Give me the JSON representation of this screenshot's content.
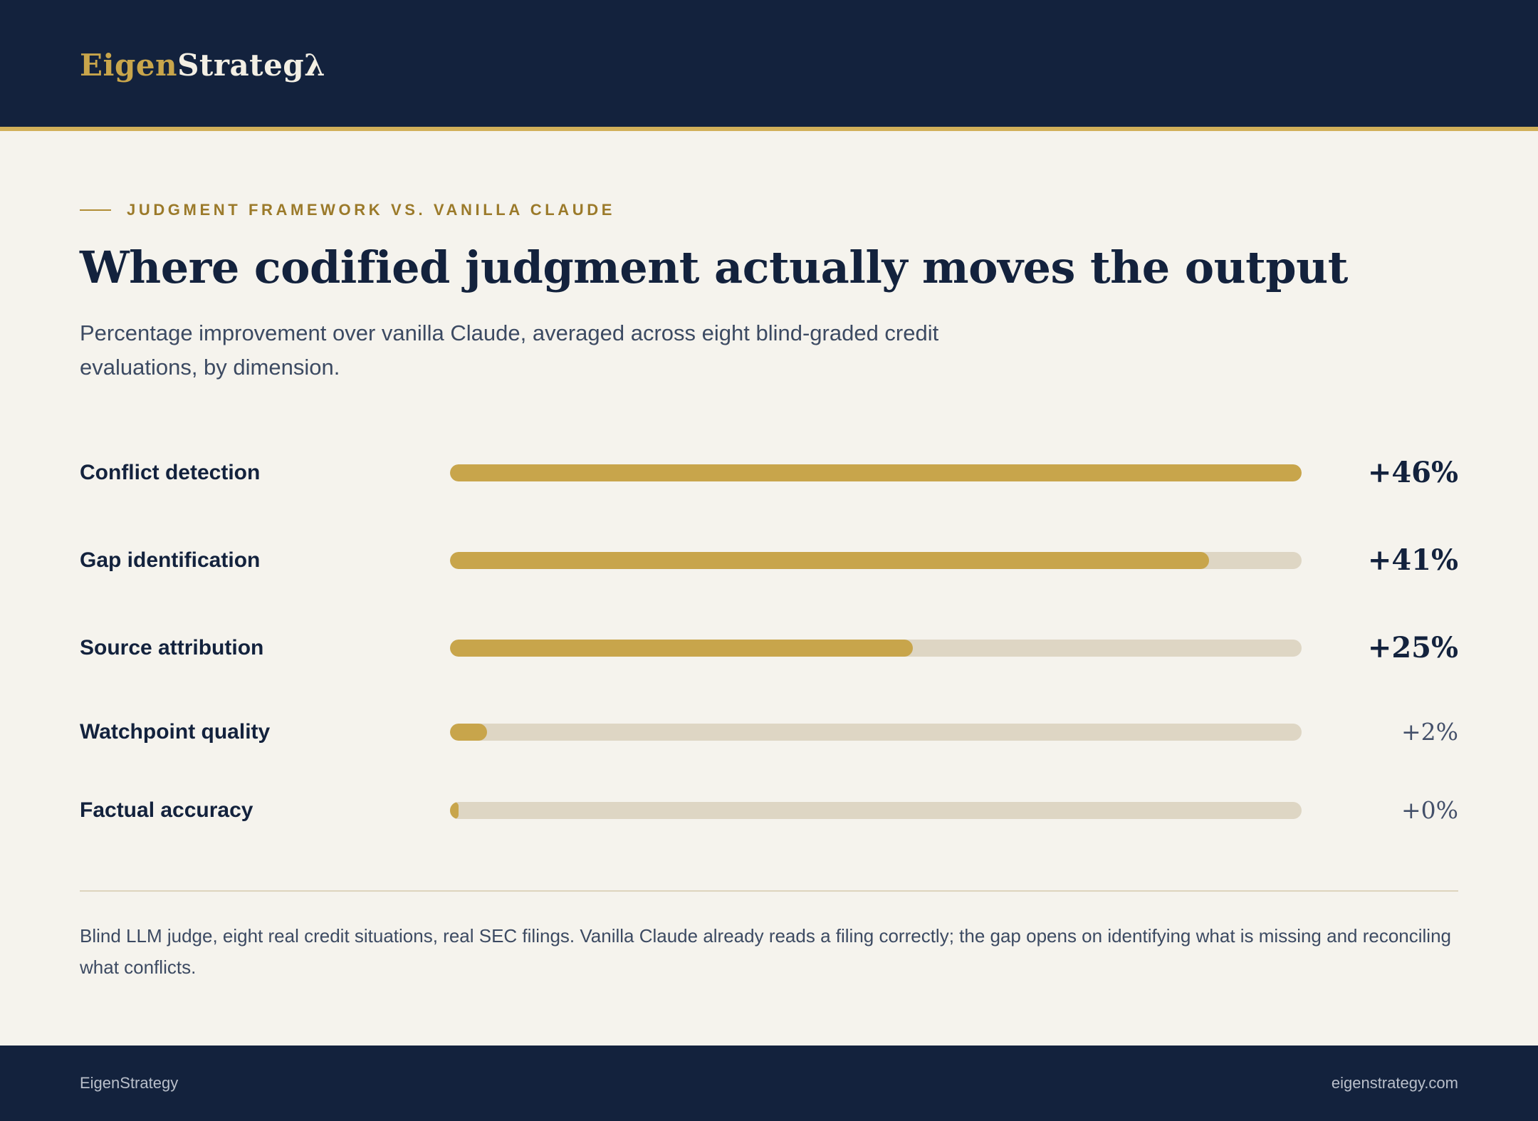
{
  "brand": {
    "name_part1": "Eigen",
    "name_part2": "Strategλ"
  },
  "eyebrow": "JUDGMENT FRAMEWORK VS. VANILLA CLAUDE",
  "title": "Where codified judgment actually moves the output",
  "subtitle": "Percentage improvement over vanilla Claude, averaged across eight blind-graded credit evaluations, by dimension.",
  "footnote": "Blind LLM judge, eight real credit situations, real SEC filings. Vanilla Claude already reads a filing correctly; the gap opens on identifying what is missing and reconciling what conflicts.",
  "footer": {
    "left": "EigenStrategy",
    "right": "eigenstrategy.com"
  },
  "colors": {
    "navy": "#13223d",
    "gold": "#c8a54b",
    "track": "#ded6c4",
    "background": "#f5f3ed"
  },
  "chart_data": {
    "type": "bar",
    "orientation": "horizontal",
    "title": "",
    "categories": [
      "Conflict detection",
      "Gap identification",
      "Source attribution",
      "Watchpoint quality",
      "Factual accuracy"
    ],
    "values": [
      46,
      41,
      25,
      2,
      0
    ],
    "value_labels": [
      "+46%",
      "+41%",
      "+25%",
      "+2%",
      "+0%"
    ],
    "unit": "%",
    "xlim": [
      0,
      46
    ],
    "grid": false,
    "legend": "none"
  }
}
